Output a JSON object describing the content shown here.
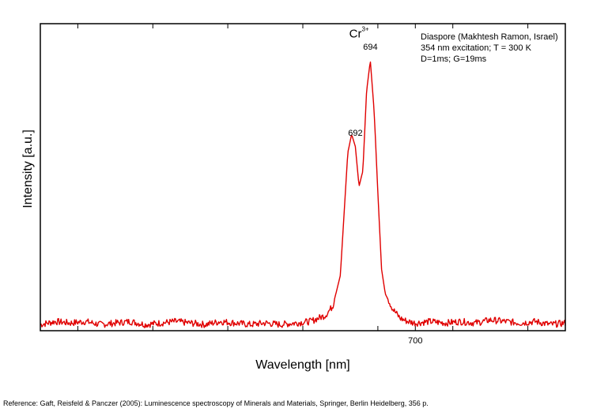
{
  "chart_data": {
    "type": "line",
    "title": "",
    "xlabel": "Wavelength [nm]",
    "ylabel": "Intensity [a.u.]",
    "xlim": [
      650,
      720
    ],
    "ylim": [
      0,
      1.0
    ],
    "x_ticks": [
      655,
      665,
      675,
      685,
      695,
      700,
      705,
      715
    ],
    "x_tick_labels": [
      {
        "x": 700,
        "label": "700"
      }
    ],
    "series": [
      {
        "color": "#e00000",
        "x": [
          650,
          652,
          654,
          656,
          658,
          660,
          662,
          664,
          666,
          668,
          670,
          672,
          674,
          676,
          678,
          680,
          682,
          684,
          686,
          688,
          689,
          690,
          690.5,
          691,
          691.5,
          692,
          692.5,
          693,
          693.5,
          694,
          694.5,
          695,
          695.5,
          696,
          697,
          698,
          699,
          700,
          702,
          704,
          706,
          708,
          710,
          712,
          714,
          716,
          718,
          720
        ],
        "y": [
          0.02,
          0.03,
          0.025,
          0.03,
          0.02,
          0.025,
          0.03,
          0.02,
          0.025,
          0.03,
          0.025,
          0.02,
          0.03,
          0.025,
          0.02,
          0.025,
          0.02,
          0.025,
          0.03,
          0.05,
          0.08,
          0.18,
          0.38,
          0.58,
          0.64,
          0.6,
          0.47,
          0.52,
          0.78,
          0.88,
          0.72,
          0.45,
          0.2,
          0.12,
          0.07,
          0.04,
          0.03,
          0.025,
          0.03,
          0.025,
          0.03,
          0.025,
          0.035,
          0.03,
          0.025,
          0.03,
          0.02,
          0.025
        ]
      }
    ],
    "annotations": [
      {
        "text": "Cr",
        "superscript": "3+",
        "x": 692.5,
        "y": 0.955
      },
      {
        "text": "694",
        "x": 694,
        "y": 0.915
      },
      {
        "text": "692",
        "x": 692,
        "y": 0.635
      }
    ],
    "legend_lines": [
      "Diaspore (Makhtesh Ramon, Israel)",
      "354 nm excitation; T = 300 K",
      "D=1ms; G=19ms"
    ],
    "legend_placement": "top-right",
    "grid": false
  },
  "footer": {
    "reference": "Reference: Gaft, Reisfeld & Panczer (2005): Luminescence spectroscopy of Minerals and Materials, Springer, Berlin Heidelberg, 356 p."
  },
  "colors": {
    "line": "#e00000",
    "axis": "#000000",
    "background": "#ffffff"
  }
}
